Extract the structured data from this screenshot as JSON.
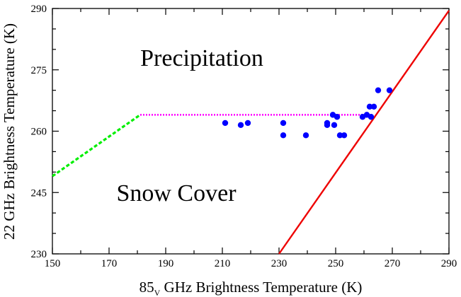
{
  "chart_data": {
    "type": "scatter",
    "title": "",
    "xlabel": {
      "main": "85",
      "subscript": "V",
      "rest": " GHz Brightness Temperature (K)"
    },
    "ylabel": "22 GHz Brightness Temperature (K)",
    "xlim": [
      150,
      290
    ],
    "ylim": [
      230,
      290
    ],
    "xticks": [
      150,
      170,
      190,
      210,
      230,
      250,
      270,
      290
    ],
    "yticks": [
      230,
      245,
      260,
      275,
      290
    ],
    "annotations": [
      {
        "text": "Precipitation",
        "x": 200,
        "y": 276
      },
      {
        "text": "Snow Cover",
        "x": 198,
        "y": 244
      }
    ],
    "series": [
      {
        "name": "observations",
        "kind": "points",
        "color": "#0000ff",
        "points": [
          [
            211,
            262
          ],
          [
            216.5,
            261.5
          ],
          [
            219,
            262
          ],
          [
            231.5,
            262
          ],
          [
            231.5,
            259
          ],
          [
            239.5,
            259
          ],
          [
            247,
            262
          ],
          [
            247,
            261.5
          ],
          [
            249,
            264
          ],
          [
            249.5,
            261.5
          ],
          [
            250.5,
            263.5
          ],
          [
            251.5,
            259
          ],
          [
            253,
            259
          ],
          [
            259.5,
            263.5
          ],
          [
            261,
            264
          ],
          [
            262,
            266
          ],
          [
            262.5,
            263.5
          ],
          [
            263.5,
            266
          ],
          [
            265,
            270
          ],
          [
            269,
            270
          ]
        ]
      },
      {
        "name": "threshold-horizontal",
        "kind": "dotted-line",
        "color": "#ff00ff",
        "points": [
          [
            181,
            264
          ],
          [
            260,
            264
          ]
        ]
      },
      {
        "name": "threshold-diagonal",
        "kind": "line",
        "color": "#ee0000",
        "points": [
          [
            230,
            230
          ],
          [
            290,
            289.5
          ]
        ]
      },
      {
        "name": "threshold-low",
        "kind": "dashed-line",
        "color": "#00ee00",
        "points": [
          [
            150,
            249
          ],
          [
            181,
            264
          ]
        ]
      }
    ]
  }
}
